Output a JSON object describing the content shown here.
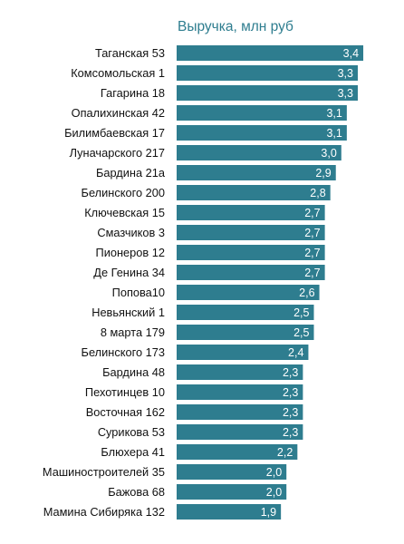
{
  "chart_data": {
    "type": "bar",
    "orientation": "horizontal",
    "title": "Выручка, млн руб",
    "categories": [
      "Таганская 53",
      "Комсомольская 1",
      "Гагарина 18",
      "Опалихинская 42",
      "Билимбаевская 17",
      "Луначарского 217",
      "Бардина 21а",
      "Белинского 200",
      "Ключевская 15",
      "Смазчиков 3",
      "Пионеров 12",
      "Де Генина 34",
      "Попова10",
      "Невьянский 1",
      "8 марта 179",
      "Белинского 173",
      "Бардина 48",
      "Пехотинцев 10",
      "Восточная 162",
      "Сурикова 53",
      "Блюхера 41",
      "Машиностроителей 35",
      "Бажова 68",
      "Мамина Сибиряка 132"
    ],
    "values": [
      3.4,
      3.3,
      3.3,
      3.1,
      3.1,
      3.0,
      2.9,
      2.8,
      2.7,
      2.7,
      2.7,
      2.7,
      2.6,
      2.5,
      2.5,
      2.4,
      2.3,
      2.3,
      2.3,
      2.3,
      2.2,
      2.0,
      2.0,
      1.9
    ],
    "value_labels": [
      "3,4",
      "3,3",
      "3,3",
      "3,1",
      "3,1",
      "3,0",
      "2,9",
      "2,8",
      "2,7",
      "2,7",
      "2,7",
      "2,7",
      "2,6",
      "2,5",
      "2,5",
      "2,4",
      "2,3",
      "2,3",
      "2,3",
      "2,3",
      "2,2",
      "2,0",
      "2,0",
      "1,9"
    ],
    "xlim": [
      0,
      3.45
    ],
    "grid": false,
    "legend": "none",
    "bar_color": "#2e7d8f",
    "title_color": "#2e7d8f",
    "value_label_color": "#ffffff"
  }
}
